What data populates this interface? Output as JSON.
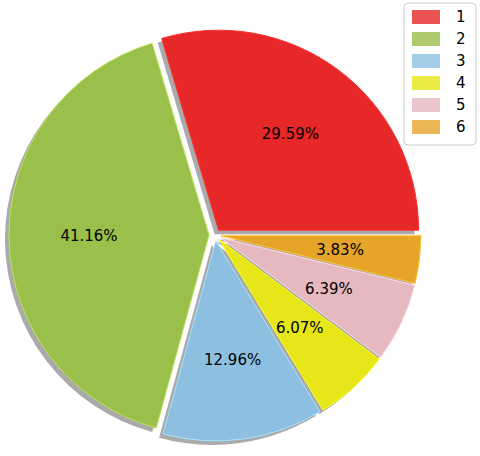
{
  "chart_data": {
    "type": "pie",
    "categories": [
      "1",
      "2",
      "3",
      "4",
      "5",
      "6"
    ],
    "values": [
      29.59,
      41.16,
      12.96,
      6.07,
      6.39,
      3.83
    ],
    "value_labels": [
      "29.59%",
      "41.16%",
      "12.96%",
      "6.07%",
      "6.39%",
      "3.83%"
    ],
    "colors": [
      "#e62828",
      "#9abf4a",
      "#8cbfe0",
      "#e6e619",
      "#e6b8c0",
      "#e6a428"
    ],
    "data_labels": true,
    "legend": "upper right"
  }
}
